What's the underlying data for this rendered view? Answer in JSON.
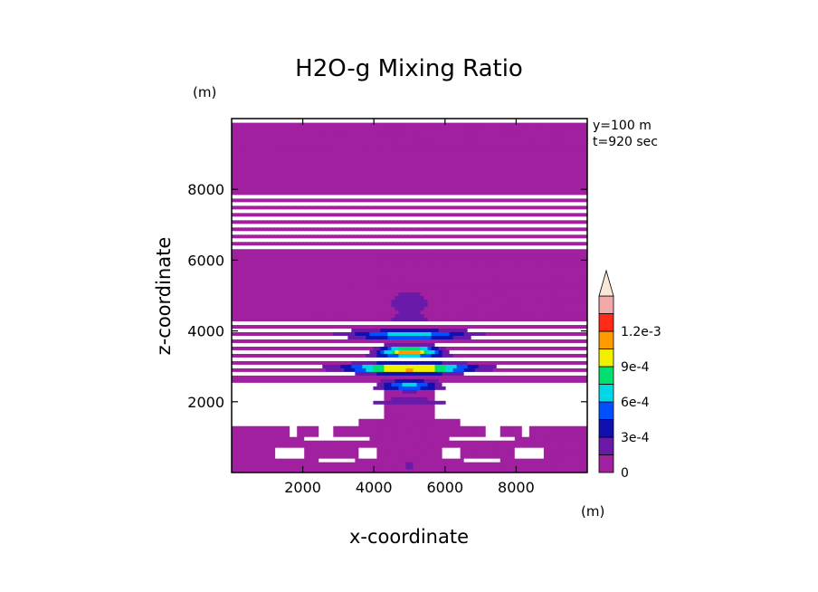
{
  "chart_data": {
    "type": "heatmap",
    "title": "H2O-g Mixing Ratio",
    "xlabel": "x-coordinate",
    "ylabel": "z-coordinate",
    "x_unit": "(m)",
    "y_unit": "(m)",
    "xlim": [
      0,
      10000
    ],
    "ylim": [
      0,
      10000
    ],
    "xticks": [
      2000,
      4000,
      6000,
      8000
    ],
    "yticks": [
      2000,
      4000,
      6000,
      8000
    ],
    "annotations": [
      "y=100 m",
      "t=920 sec"
    ],
    "colorbar": {
      "levels": [
        0,
        0.00015,
        0.0003,
        0.00045,
        0.0006,
        0.00075,
        0.0009,
        0.00105,
        0.0012,
        0.00135
      ],
      "colors": [
        "#a020a0",
        "#6a1aa8",
        "#1010b0",
        "#0050ff",
        "#00d8e8",
        "#00e070",
        "#f0f000",
        "#ff9a00",
        "#ff2a1a",
        "#f0a8a8",
        "#f8e8d8"
      ],
      "tick_labels": [
        "0",
        "3e-4",
        "6e-4",
        "9e-4",
        "1.2e-3"
      ],
      "tick_values": [
        0,
        0.0003,
        0.0006,
        0.0009,
        0.0012
      ],
      "extend": "max"
    },
    "features": {
      "plume_center_x": 5000,
      "core_z_range": [
        2600,
        4000
      ],
      "peak_value": 0.00125,
      "peak_z": 2900
    }
  }
}
